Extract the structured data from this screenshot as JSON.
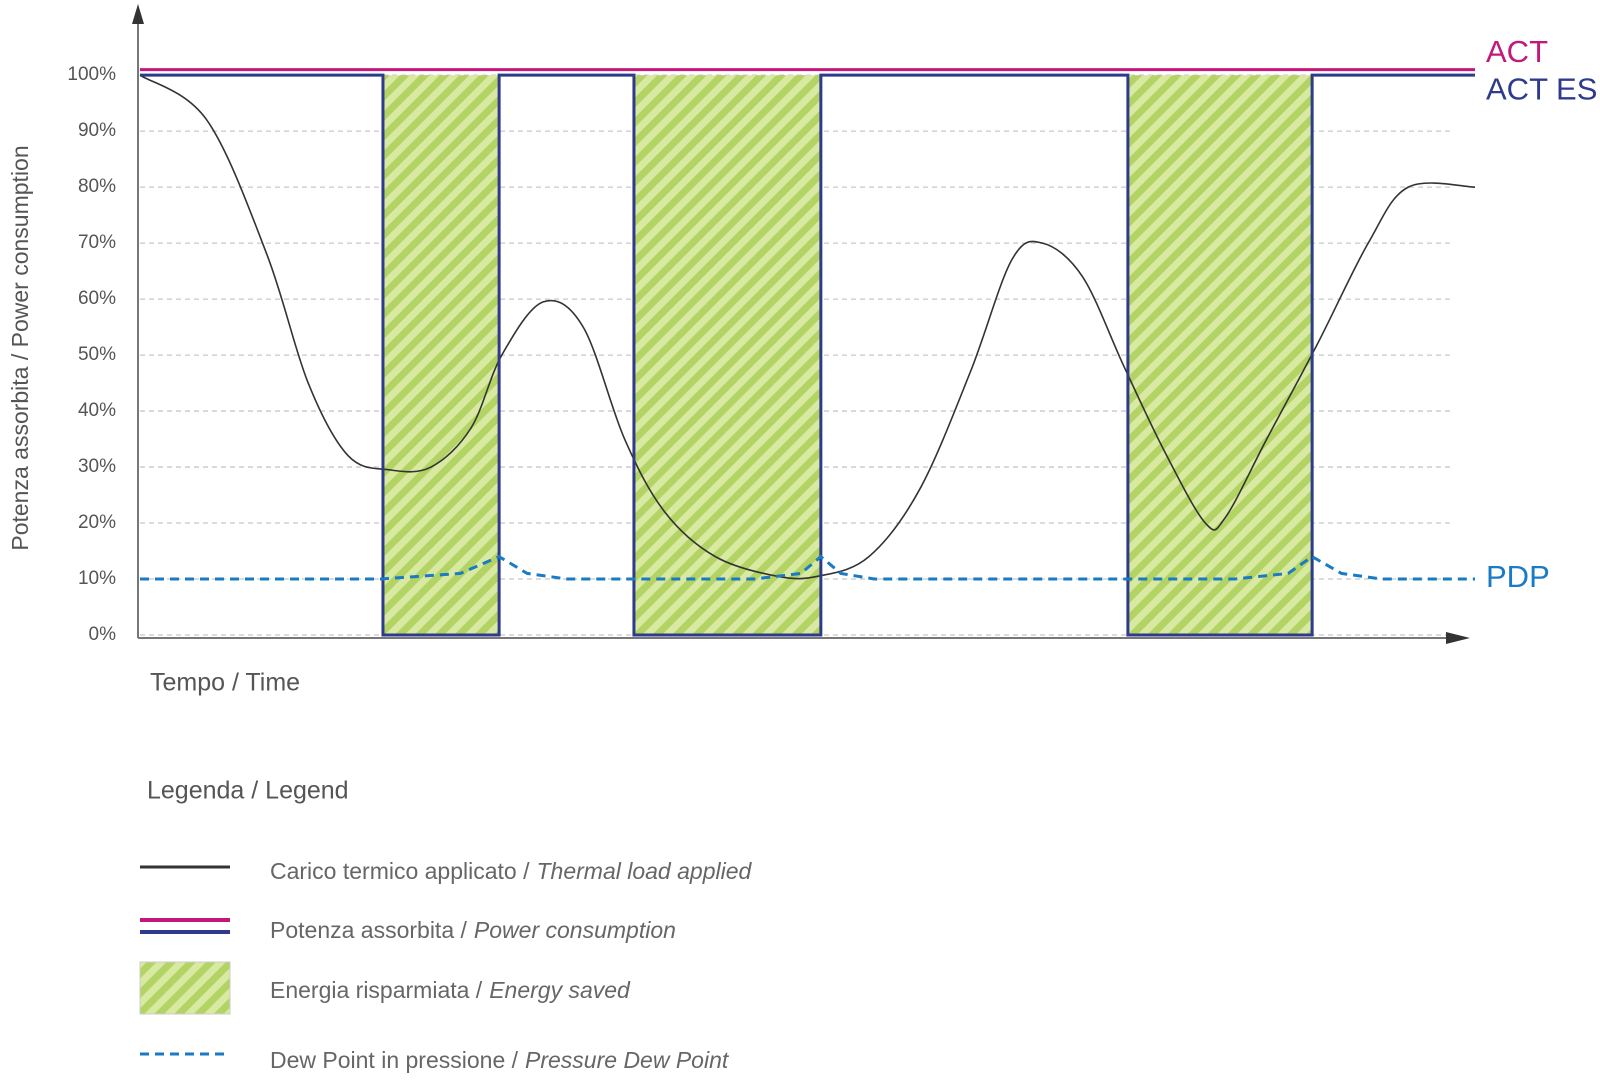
{
  "chart_data": {
    "type": "line",
    "y_label": "Potenza assorbita / Power consumption",
    "x_label": "Tempo / Time",
    "xlim": [
      0,
      100
    ],
    "ylim": [
      0,
      112
    ],
    "yticks": [
      {
        "value": 0,
        "label": "0%"
      },
      {
        "value": 10,
        "label": "10%"
      },
      {
        "value": 20,
        "label": "20%"
      },
      {
        "value": 30,
        "label": "30%"
      },
      {
        "value": 40,
        "label": "40%"
      },
      {
        "value": 50,
        "label": "50%"
      },
      {
        "value": 60,
        "label": "60%"
      },
      {
        "value": 70,
        "label": "70%"
      },
      {
        "value": 80,
        "label": "80%"
      },
      {
        "value": 90,
        "label": "90%"
      },
      {
        "value": 100,
        "label": "100%"
      }
    ],
    "grid": true,
    "series": [
      {
        "color": "#333333",
        "smooth": true,
        "x": [
          0,
          5,
          9.5,
          12.6,
          15.6,
          18.7,
          21.8,
          24.8,
          27.1,
          30.2,
          33.2,
          36.3,
          39.3,
          43.1,
          47.7,
          50.8,
          54.6,
          58.4,
          62.2,
          65.3,
          67.6,
          70.6,
          73.7,
          76.7,
          79.8,
          81.3,
          84.4,
          88.2,
          92,
          95,
          100
        ],
        "values": [
          100,
          92,
          68,
          45,
          32,
          29.5,
          30,
          37,
          50,
          59.5,
          55,
          35,
          22,
          14,
          10.5,
          10.5,
          14,
          26,
          47,
          67,
          70,
          64,
          48,
          33,
          20,
          21,
          35,
          52,
          70,
          80,
          80
        ]
      },
      {
        "name": "ACT",
        "color": "#c2187a",
        "x": [
          0,
          100
        ],
        "values": [
          101,
          101
        ]
      },
      {
        "name": "ACT ES",
        "color": "#2e3a8c",
        "fill_gaps": true,
        "x": [
          0,
          18.2,
          18.2,
          26.9,
          26.9,
          37,
          37,
          51,
          51,
          74,
          74,
          87.8,
          87.8,
          100
        ],
        "values": [
          100,
          100,
          0,
          0,
          100,
          100,
          0,
          0,
          100,
          100,
          0,
          0,
          100,
          100
        ]
      },
      {
        "name": "PDP",
        "color": "#1a7ac4",
        "dashed": true,
        "x": [
          0,
          18,
          24,
          26.9,
          29,
          32,
          46,
          49.5,
          51,
          52.5,
          55,
          82,
          86,
          87.8,
          90,
          93,
          100
        ],
        "values": [
          10,
          10,
          11,
          14,
          11,
          10,
          10,
          11,
          14,
          11,
          10,
          10,
          11,
          14,
          11,
          10,
          10
        ]
      }
    ],
    "legend_title": "Legenda  / Legend",
    "legend": [
      {
        "text": "Carico termico applicato /",
        "text_italic": "Thermal load applied"
      },
      {
        "text": "Potenza assorbita /",
        "text_italic": "Power consumption"
      },
      {
        "text": "Energia risparmiata /",
        "text_italic": "Energy saved"
      },
      {
        "text": "Dew Point in pressione /",
        "text_italic": "Pressure Dew Point"
      }
    ]
  }
}
